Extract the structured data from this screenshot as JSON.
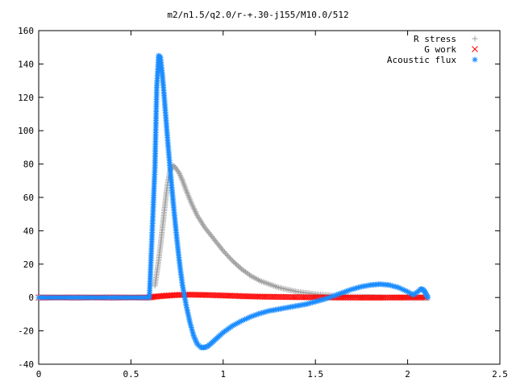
{
  "chart_data": {
    "type": "scatter",
    "title": "m2/n1.5/q2.0/r-+.30-j155/M10.0/512",
    "xlabel": "",
    "ylabel": "",
    "xlim": [
      0,
      2.5
    ],
    "ylim": [
      -40,
      160
    ],
    "x_ticks": [
      0,
      0.5,
      1,
      1.5,
      2,
      2.5
    ],
    "x_tick_labels": [
      "0",
      "0.5",
      "1",
      "1.5",
      "2",
      "2.5"
    ],
    "y_ticks": [
      -40,
      -20,
      0,
      20,
      40,
      60,
      80,
      100,
      120,
      140,
      160
    ],
    "y_tick_labels": [
      "-40",
      "-20",
      "0",
      "20",
      "40",
      "60",
      "80",
      "100",
      "120",
      "140",
      "160"
    ],
    "grid": false,
    "legend_position": "top-right",
    "series": [
      {
        "name": "R stress",
        "marker": "+",
        "color": "#a0a0a0",
        "x": [
          0.63,
          0.65,
          0.66,
          0.67,
          0.68,
          0.69,
          0.7,
          0.71,
          0.72,
          0.73,
          0.74,
          0.76,
          0.78,
          0.8,
          0.83,
          0.86,
          0.9,
          0.95,
          1.0,
          1.05,
          1.1,
          1.15,
          1.2,
          1.3,
          1.4,
          1.5,
          1.6,
          1.7,
          1.8,
          1.9,
          2.0,
          2.1
        ],
        "y": [
          7,
          22,
          31,
          41,
          51,
          61,
          69,
          75,
          78,
          79,
          78,
          75,
          70,
          64,
          56,
          49,
          42,
          35,
          28,
          22,
          17,
          13,
          10,
          6,
          3.5,
          2,
          1.2,
          0.6,
          0.3,
          0.1,
          0,
          0
        ]
      },
      {
        "name": "G work",
        "marker": "x",
        "color": "#ff0000",
        "x": [
          0,
          0.2,
          0.4,
          0.6,
          0.63,
          0.68,
          0.75,
          0.82,
          0.9,
          1.0,
          1.1,
          1.2,
          1.4,
          1.6,
          1.8,
          2.0,
          2.1
        ],
        "y": [
          0,
          0,
          0,
          0,
          0.5,
          1,
          1.5,
          1.7,
          1.5,
          1.2,
          0.8,
          0.5,
          0.2,
          0,
          -0.1,
          0,
          0
        ]
      },
      {
        "name": "Acoustic flux",
        "marker": "*",
        "color": "#1a8cff",
        "x": [
          0,
          0.1,
          0.2,
          0.3,
          0.4,
          0.5,
          0.6,
          0.63,
          0.64,
          0.65,
          0.66,
          0.67,
          0.68,
          0.69,
          0.7,
          0.71,
          0.72,
          0.73,
          0.74,
          0.75,
          0.76,
          0.77,
          0.78,
          0.8,
          0.82,
          0.84,
          0.86,
          0.88,
          0.9,
          0.92,
          0.95,
          0.98,
          1.0,
          1.05,
          1.1,
          1.15,
          1.2,
          1.25,
          1.3,
          1.35,
          1.4,
          1.45,
          1.5,
          1.55,
          1.6,
          1.65,
          1.7,
          1.75,
          1.8,
          1.85,
          1.9,
          1.95,
          2.0,
          2.03,
          2.05,
          2.07,
          2.08,
          2.09,
          2.1,
          2.11
        ],
        "y": [
          0,
          0,
          0,
          0,
          0,
          0,
          0,
          78,
          126,
          145,
          144,
          134,
          121,
          107,
          93,
          80,
          68,
          56,
          45,
          34,
          24,
          15,
          7,
          -5,
          -15,
          -23,
          -28,
          -30,
          -30,
          -29,
          -26,
          -23,
          -21,
          -17,
          -14,
          -11.5,
          -9.5,
          -8,
          -7,
          -6,
          -5,
          -4,
          -2.5,
          -1,
          1,
          3,
          5,
          6.5,
          7.5,
          8,
          7.5,
          6,
          3.5,
          1.5,
          3,
          5,
          5,
          4,
          2,
          0
        ]
      }
    ]
  }
}
